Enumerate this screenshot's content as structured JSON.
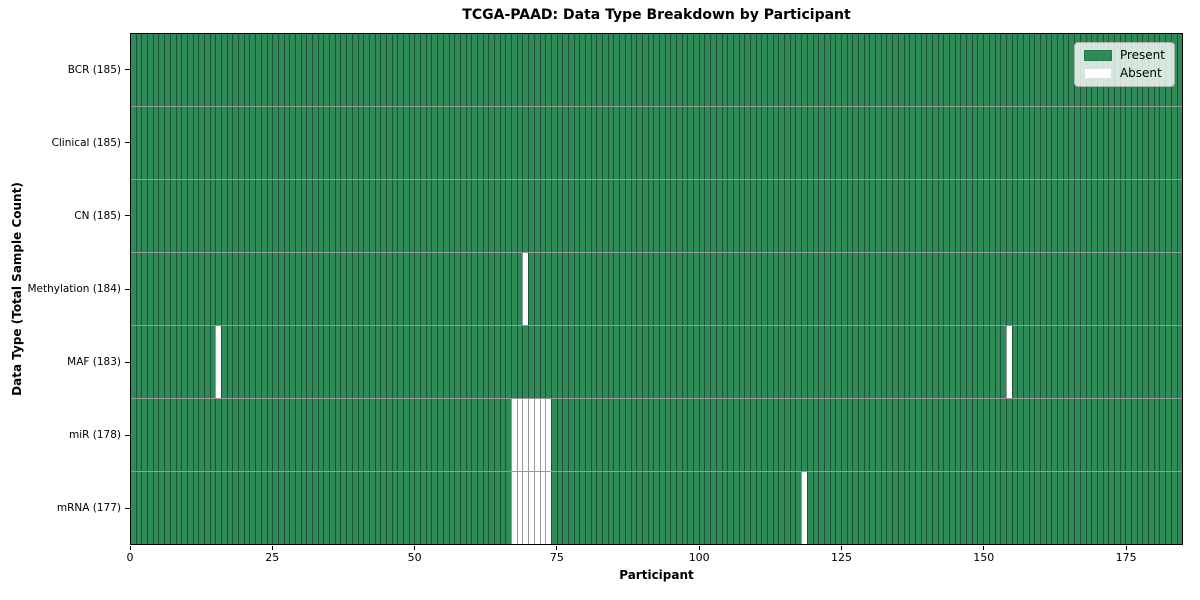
{
  "chart_data": {
    "type": "heatmap",
    "title": "TCGA-PAAD: Data Type Breakdown by Participant",
    "xlabel": "Participant",
    "ylabel": "Data Type (Total Sample Count)",
    "n_participants": 185,
    "xlim": [
      0,
      185
    ],
    "x_ticks": [
      0,
      25,
      50,
      75,
      100,
      125,
      150,
      175
    ],
    "grid": "cell-edges-only",
    "rows": [
      {
        "label": "BCR (185)",
        "data_type": "BCR",
        "present_count": 185,
        "absent_participants": []
      },
      {
        "label": "Clinical (185)",
        "data_type": "Clinical",
        "present_count": 185,
        "absent_participants": []
      },
      {
        "label": "CN (185)",
        "data_type": "CN",
        "present_count": 185,
        "absent_participants": []
      },
      {
        "label": "Methylation (184)",
        "data_type": "Methylation",
        "present_count": 184,
        "absent_participants": [
          69
        ]
      },
      {
        "label": "MAF (183)",
        "data_type": "MAF",
        "present_count": 183,
        "absent_participants": [
          15,
          154
        ]
      },
      {
        "label": "miR (178)",
        "data_type": "miR",
        "present_count": 178,
        "absent_participants": [
          67,
          68,
          69,
          70,
          71,
          72,
          73
        ]
      },
      {
        "label": "mRNA (177)",
        "data_type": "mRNA",
        "present_count": 177,
        "absent_participants": [
          67,
          68,
          69,
          70,
          71,
          72,
          73,
          118
        ]
      }
    ],
    "legend": {
      "position": "upper right",
      "entries": [
        {
          "label": "Present",
          "color": "#2e8b57"
        },
        {
          "label": "Absent",
          "color": "#ffffff"
        }
      ]
    },
    "colors": {
      "present": "#2e8b57",
      "absent": "#ffffff",
      "cell_edge": "rgba(0,0,0,0.4)",
      "spine": "#000000"
    }
  }
}
